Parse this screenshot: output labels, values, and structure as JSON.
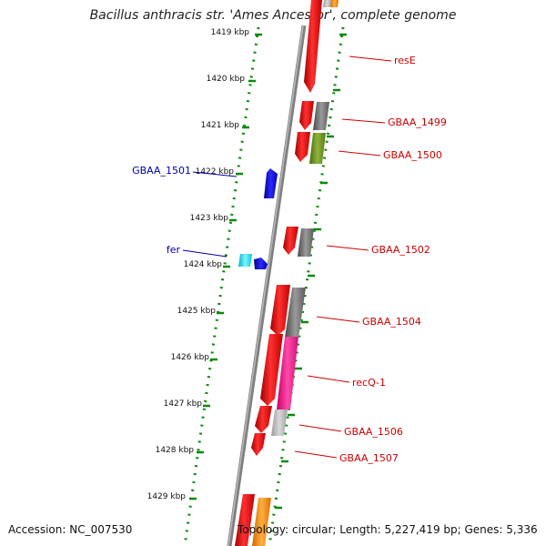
{
  "title": "Bacillus anthracis str. 'Ames Ancestor', complete genome",
  "accession_text": "Accession: NC_007530",
  "topology_text": "Topology: circular; Length: 5,227,419 bp; Genes: 5,336",
  "ticks": [
    "1419 kbp",
    "1420 kbp",
    "1421 kbp",
    "1422 kbp",
    "1423 kbp",
    "1424 kbp",
    "1425 kbp",
    "1426 kbp",
    "1427 kbp",
    "1428 kbp",
    "1429 kbp"
  ],
  "gene_labels_right": [
    "resE",
    "GBAA_1499",
    "GBAA_1500",
    "GBAA_1502",
    "GBAA_1504",
    "recQ-1",
    "GBAA_1506",
    "GBAA_1507"
  ],
  "gene_labels_left": [
    "GBAA_1501",
    "fer"
  ],
  "colors": {
    "cds_red": "#ff0000",
    "cds_gray": "#6e6e6e",
    "cds_olive": "#6b8e23",
    "cds_magenta": "#ff1493",
    "cds_lightgray": "#b4b4b4",
    "cds_orange": "#ff8c00",
    "cds_blue": "#0000ee",
    "cds_cyan": "#00e5ff",
    "backbone": "#808080",
    "dots": "#0a8a0a",
    "label_red": "#cc0000",
    "label_blue": "#0000aa"
  }
}
